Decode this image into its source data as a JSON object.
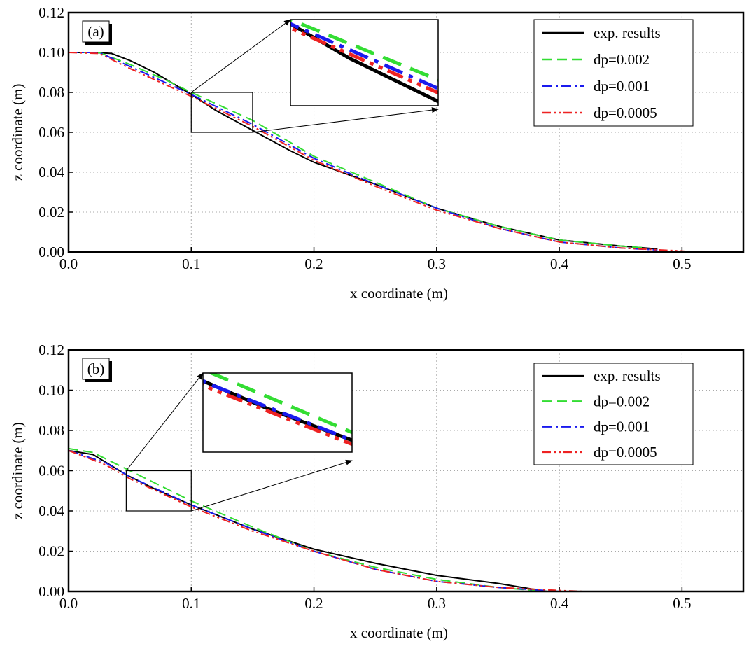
{
  "chart_data": [
    {
      "type": "line",
      "label": "(a)",
      "xlabel": "x coordinate (m)",
      "ylabel": "z coordinate (m)",
      "xlim": [
        0,
        0.55
      ],
      "ylim": [
        0,
        0.12
      ],
      "xticks": [
        {
          "value": 0,
          "label": "0.0"
        },
        0.1,
        0.2,
        0.3,
        0.4,
        0.5
      ],
      "yticks": [
        {
          "value": 0,
          "label": "0.00"
        },
        0.02,
        0.04,
        0.06,
        0.08,
        {
          "value": 0.1,
          "label": "0.10"
        },
        0.12
      ],
      "grid": true,
      "legend": "upper right",
      "zoom_xlim": [
        0.1,
        0.15
      ],
      "zoom_ylim": [
        0.06,
        0.08
      ],
      "series": [
        {
          "name": "exp. results",
          "color": "#000000",
          "x": [
            0,
            0.02,
            0.035,
            0.05,
            0.07,
            0.1,
            0.12,
            0.15,
            0.18,
            0.2,
            0.25,
            0.3,
            0.35,
            0.4,
            0.45,
            0.48
          ],
          "values": [
            0.1,
            0.1,
            0.0995,
            0.096,
            0.09,
            0.079,
            0.071,
            0.061,
            0.051,
            0.045,
            0.034,
            0.022,
            0.013,
            0.006,
            0.003,
            0.0015
          ]
        },
        {
          "name": "dp=0.002",
          "color": "#33dd33",
          "x": [
            0,
            0.025,
            0.05,
            0.08,
            0.1,
            0.15,
            0.2,
            0.25,
            0.3,
            0.35,
            0.4,
            0.45,
            0.47
          ],
          "values": [
            0.1,
            0.1,
            0.094,
            0.086,
            0.08,
            0.066,
            0.048,
            0.035,
            0.022,
            0.013,
            0.006,
            0.003,
            0.002
          ]
        },
        {
          "name": "dp=0.001",
          "color": "#1a1aee",
          "x": [
            0,
            0.025,
            0.05,
            0.1,
            0.15,
            0.2,
            0.25,
            0.3,
            0.35,
            0.4,
            0.45,
            0.48
          ],
          "values": [
            0.1,
            0.1,
            0.093,
            0.079,
            0.064,
            0.047,
            0.034,
            0.022,
            0.012,
            0.005,
            0.002,
            0.001
          ]
        },
        {
          "name": "dp=0.0005",
          "color": "#ee2222",
          "x": [
            0,
            0.025,
            0.05,
            0.1,
            0.15,
            0.2,
            0.25,
            0.3,
            0.35,
            0.4,
            0.45,
            0.5,
            0.51
          ],
          "values": [
            0.1,
            0.0995,
            0.092,
            0.078,
            0.063,
            0.046,
            0.033,
            0.021,
            0.012,
            0.005,
            0.002,
            0.0005,
            0
          ]
        }
      ]
    },
    {
      "type": "line",
      "label": "(b)",
      "xlabel": "x coordinate (m)",
      "ylabel": "z coordinate (m)",
      "xlim": [
        0,
        0.55
      ],
      "ylim": [
        0,
        0.12
      ],
      "xticks": [
        {
          "value": 0,
          "label": "0.0"
        },
        0.1,
        0.2,
        0.3,
        0.4,
        0.5
      ],
      "yticks": [
        {
          "value": 0,
          "label": "0.00"
        },
        0.02,
        0.04,
        0.06,
        0.08,
        {
          "value": 0.1,
          "label": "0.10"
        },
        0.12
      ],
      "grid": true,
      "legend": "upper right",
      "zoom_xlim": [
        0.047,
        0.1
      ],
      "zoom_ylim": [
        0.04,
        0.06
      ],
      "series": [
        {
          "name": "exp. results",
          "color": "#000000",
          "x": [
            0,
            0.02,
            0.047,
            0.07,
            0.1,
            0.15,
            0.2,
            0.25,
            0.3,
            0.35,
            0.39
          ],
          "values": [
            0.07,
            0.068,
            0.058,
            0.051,
            0.043,
            0.031,
            0.021,
            0.014,
            0.008,
            0.004,
            0
          ]
        },
        {
          "name": "dp=0.002",
          "color": "#33dd33",
          "x": [
            0,
            0.02,
            0.05,
            0.1,
            0.15,
            0.2,
            0.25,
            0.3,
            0.35,
            0.39
          ],
          "values": [
            0.071,
            0.069,
            0.06,
            0.045,
            0.032,
            0.02,
            0.012,
            0.006,
            0.002,
            0
          ]
        },
        {
          "name": "dp=0.001",
          "color": "#1a1aee",
          "x": [
            0,
            0.03,
            0.05,
            0.1,
            0.15,
            0.2,
            0.25,
            0.3,
            0.35,
            0.4
          ],
          "values": [
            0.07,
            0.064,
            0.057,
            0.043,
            0.031,
            0.02,
            0.011,
            0.005,
            0.002,
            0
          ]
        },
        {
          "name": "dp=0.0005",
          "color": "#ee2222",
          "x": [
            0,
            0.03,
            0.05,
            0.1,
            0.15,
            0.2,
            0.25,
            0.3,
            0.35,
            0.4,
            0.42
          ],
          "values": [
            0.07,
            0.063,
            0.056,
            0.042,
            0.03,
            0.02,
            0.011,
            0.005,
            0.002,
            0.0005,
            0
          ]
        }
      ]
    }
  ]
}
